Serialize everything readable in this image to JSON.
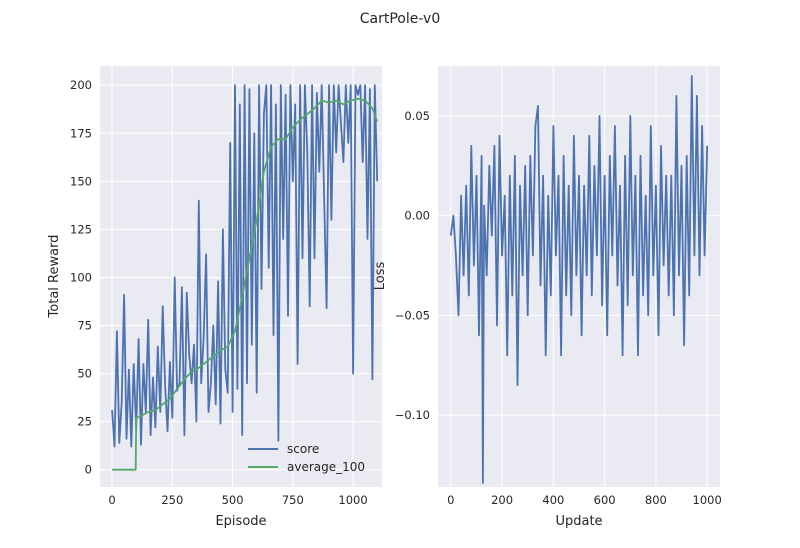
{
  "figure": {
    "suptitle": "CartPole-v0"
  },
  "colors": {
    "background": "#eaeaf2",
    "grid": "#ffffff",
    "score": "#4c72b0",
    "average": "#55a868",
    "text": "#262626"
  },
  "chart_data": [
    {
      "type": "line",
      "title": "",
      "xlabel": "Episode",
      "ylabel": "Total Reward",
      "xlim": [
        -50,
        1120
      ],
      "ylim": [
        -9,
        210
      ],
      "xticks": [
        0,
        250,
        500,
        750,
        1000
      ],
      "yticks": [
        0,
        25,
        50,
        75,
        100,
        125,
        150,
        175,
        200
      ],
      "grid": true,
      "legend": {
        "position": "lower-right",
        "entries": [
          "score",
          "average_100"
        ]
      },
      "series": [
        {
          "name": "score",
          "color": "#4c72b0",
          "x": [
            0,
            10,
            20,
            30,
            40,
            50,
            60,
            70,
            80,
            90,
            100,
            110,
            120,
            130,
            140,
            150,
            160,
            170,
            180,
            190,
            200,
            210,
            220,
            230,
            240,
            250,
            260,
            270,
            280,
            290,
            300,
            310,
            320,
            330,
            340,
            350,
            360,
            370,
            380,
            390,
            400,
            410,
            420,
            430,
            440,
            450,
            460,
            470,
            480,
            490,
            500,
            510,
            520,
            530,
            540,
            550,
            560,
            570,
            580,
            590,
            600,
            610,
            620,
            630,
            640,
            650,
            660,
            670,
            680,
            690,
            700,
            710,
            720,
            730,
            740,
            750,
            760,
            770,
            780,
            790,
            800,
            810,
            820,
            830,
            840,
            850,
            860,
            870,
            880,
            890,
            900,
            910,
            920,
            930,
            940,
            950,
            960,
            970,
            980,
            990,
            1000,
            1010,
            1020,
            1030,
            1040,
            1050,
            1060,
            1070,
            1080,
            1090,
            1100
          ],
          "y": [
            31,
            12,
            72,
            14,
            35,
            91,
            16,
            52,
            12,
            55,
            21,
            68,
            13,
            55,
            30,
            78,
            18,
            48,
            22,
            64,
            30,
            85,
            44,
            20,
            56,
            27,
            100,
            41,
            45,
            95,
            18,
            92,
            60,
            45,
            65,
            25,
            140,
            45,
            68,
            112,
            30,
            45,
            75,
            34,
            98,
            24,
            125,
            52,
            40,
            170,
            30,
            200,
            42,
            190,
            18,
            200,
            45,
            198,
            65,
            175,
            40,
            200,
            94,
            185,
            200,
            105,
            200,
            70,
            190,
            15,
            200,
            120,
            195,
            80,
            200,
            150,
            190,
            55,
            200,
            110,
            200,
            165,
            85,
            200,
            110,
            196,
            155,
            200,
            140,
            84,
            200,
            130,
            200,
            165,
            200,
            180,
            160,
            200,
            170,
            200,
            50,
            200,
            195,
            200,
            160,
            200,
            120,
            198,
            47,
            200,
            150
          ]
        },
        {
          "name": "average_100",
          "color": "#55a868",
          "x": [
            0,
            50,
            98,
            100,
            120,
            150,
            180,
            210,
            240,
            270,
            300,
            330,
            360,
            390,
            420,
            450,
            480,
            510,
            540,
            570,
            600,
            630,
            660,
            690,
            720,
            750,
            780,
            810,
            840,
            870,
            900,
            930,
            960,
            990,
            1020,
            1050,
            1080,
            1100
          ],
          "y": [
            0,
            0,
            0,
            27,
            28,
            30,
            31,
            34,
            37,
            42,
            47,
            51,
            53,
            56,
            59,
            62,
            64,
            72,
            90,
            110,
            130,
            155,
            168,
            172,
            172,
            178,
            182,
            185,
            188,
            192,
            191,
            192,
            190,
            192,
            193,
            192,
            188,
            181
          ]
        }
      ]
    },
    {
      "type": "line",
      "title": "",
      "xlabel": "Update",
      "ylabel": "Loss",
      "xlim": [
        -50,
        1050
      ],
      "ylim": [
        -0.136,
        0.075
      ],
      "xticks": [
        0,
        200,
        400,
        600,
        800,
        1000
      ],
      "ytick_values": [
        0.05,
        0.0,
        -0.05,
        -0.1
      ],
      "ytick_labels": [
        "0.05",
        "0.00",
        "−0.05",
        "−0.10"
      ],
      "grid": true,
      "series": [
        {
          "name": "",
          "color": "#4c72b0",
          "x": [
            0,
            10,
            20,
            30,
            40,
            50,
            60,
            70,
            80,
            90,
            100,
            110,
            120,
            125,
            130,
            140,
            150,
            160,
            170,
            180,
            190,
            200,
            210,
            220,
            230,
            240,
            250,
            260,
            270,
            280,
            290,
            300,
            310,
            320,
            330,
            340,
            350,
            360,
            370,
            380,
            390,
            400,
            410,
            420,
            430,
            440,
            450,
            460,
            470,
            480,
            490,
            500,
            510,
            520,
            530,
            540,
            550,
            560,
            570,
            580,
            590,
            600,
            610,
            620,
            630,
            640,
            650,
            660,
            670,
            680,
            690,
            700,
            710,
            720,
            730,
            740,
            750,
            760,
            770,
            780,
            790,
            800,
            810,
            820,
            830,
            840,
            850,
            860,
            870,
            880,
            890,
            900,
            910,
            920,
            930,
            940,
            950,
            960,
            970,
            980,
            990,
            1000
          ],
          "y": [
            -0.01,
            0.0,
            -0.02,
            -0.05,
            0.01,
            -0.03,
            0.015,
            -0.04,
            0.035,
            -0.025,
            0.02,
            -0.06,
            0.03,
            -0.134,
            0.005,
            -0.03,
            0.025,
            -0.01,
            0.035,
            -0.055,
            0.04,
            -0.02,
            0.01,
            -0.07,
            0.02,
            -0.04,
            0.03,
            -0.085,
            0.015,
            -0.03,
            0.025,
            -0.05,
            0.03,
            -0.02,
            0.045,
            0.055,
            -0.035,
            0.02,
            -0.07,
            0.01,
            -0.04,
            0.045,
            -0.02,
            0.02,
            -0.07,
            0.03,
            -0.04,
            0.015,
            -0.05,
            0.04,
            -0.03,
            0.02,
            -0.06,
            0.015,
            -0.03,
            0.04,
            -0.04,
            0.025,
            -0.02,
            0.05,
            -0.045,
            0.02,
            -0.06,
            0.03,
            -0.02,
            0.045,
            -0.035,
            0.015,
            -0.07,
            0.03,
            -0.045,
            0.05,
            -0.03,
            0.02,
            -0.07,
            0.03,
            -0.04,
            0.01,
            -0.05,
            0.045,
            -0.03,
            0.015,
            -0.06,
            0.035,
            -0.025,
            0.02,
            -0.04,
            0.02,
            -0.05,
            0.06,
            -0.03,
            0.025,
            -0.065,
            0.03,
            -0.04,
            0.07,
            -0.02,
            0.06,
            -0.03,
            0.045,
            -0.02,
            0.035
          ]
        }
      ]
    }
  ]
}
